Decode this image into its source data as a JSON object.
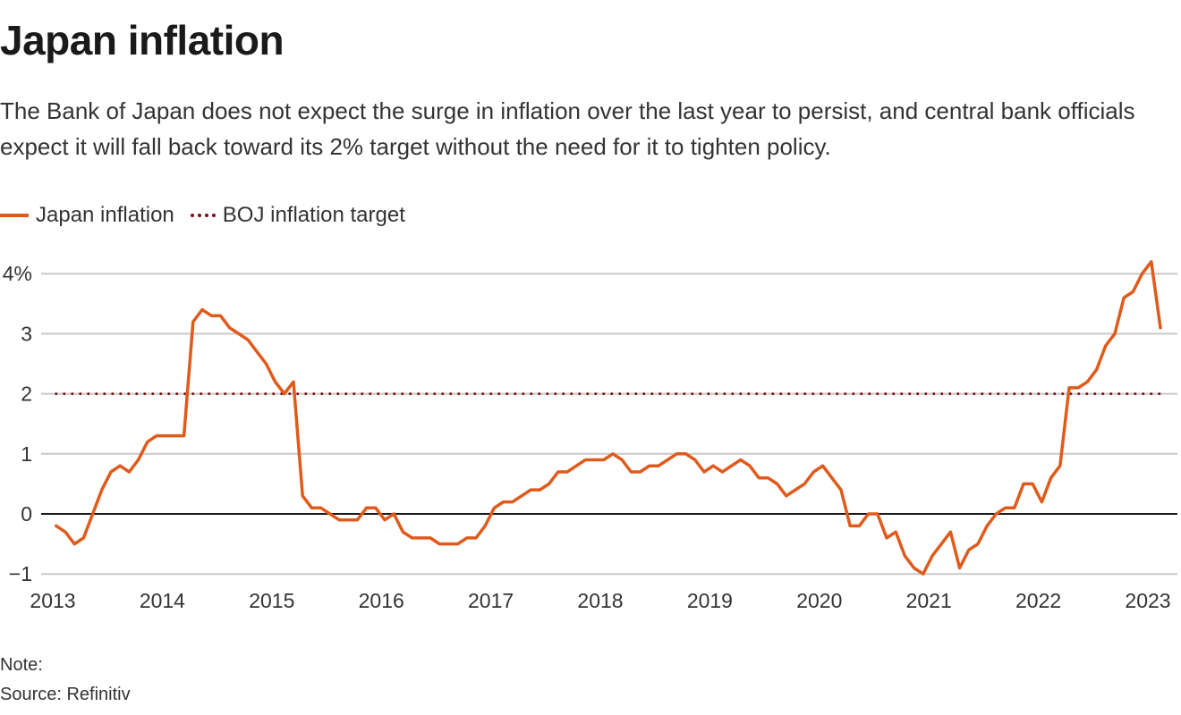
{
  "header": {
    "title": "Japan inflation",
    "subtitle": "The Bank of Japan does not expect the surge in inflation over the last year to persist, and central bank officials expect it will fall back toward its 2% target without the need for it to tighten policy."
  },
  "legend": [
    {
      "label": "Japan inflation",
      "style": "solid",
      "color": "#e05a1b"
    },
    {
      "label": "BOJ inflation target",
      "style": "dotted",
      "color": "#7a0d12"
    }
  ],
  "footer": {
    "note": "Note:",
    "source": "Source: Refinitiv"
  },
  "chart_data": {
    "type": "line",
    "title": "Japan inflation",
    "xlabel": "",
    "ylabel": "",
    "ylim": [
      -1,
      4
    ],
    "yticks": [
      -1,
      0,
      1,
      2,
      3,
      4
    ],
    "ytick_labels": [
      "−1",
      "0",
      "1",
      "2",
      "3",
      "4%"
    ],
    "xlim": [
      2013,
      2023.25
    ],
    "xticks": [
      2013,
      2014,
      2015,
      2016,
      2017,
      2018,
      2019,
      2020,
      2021,
      2022,
      2023
    ],
    "xtick_labels": [
      "2013",
      "2014",
      "2015",
      "2016",
      "2017",
      "2018",
      "2019",
      "2020",
      "2021",
      "2022",
      "2023"
    ],
    "grid": true,
    "legend_position": "top-left",
    "x_start": "2013-01",
    "frequency": "monthly",
    "series": [
      {
        "name": "Japan inflation",
        "color": "#e05a1b",
        "style": "solid",
        "values": [
          -0.2,
          -0.3,
          -0.5,
          -0.4,
          0.0,
          0.4,
          0.7,
          0.8,
          0.7,
          0.9,
          1.2,
          1.3,
          1.3,
          1.3,
          1.3,
          3.2,
          3.4,
          3.3,
          3.3,
          3.1,
          3.0,
          2.9,
          2.7,
          2.5,
          2.2,
          2.0,
          2.2,
          0.3,
          0.1,
          0.1,
          0.0,
          -0.1,
          -0.1,
          -0.1,
          0.1,
          0.1,
          -0.1,
          0.0,
          -0.3,
          -0.4,
          -0.4,
          -0.4,
          -0.5,
          -0.5,
          -0.5,
          -0.4,
          -0.4,
          -0.2,
          0.1,
          0.2,
          0.2,
          0.3,
          0.4,
          0.4,
          0.5,
          0.7,
          0.7,
          0.8,
          0.9,
          0.9,
          0.9,
          1.0,
          0.9,
          0.7,
          0.7,
          0.8,
          0.8,
          0.9,
          1.0,
          1.0,
          0.9,
          0.7,
          0.8,
          0.7,
          0.8,
          0.9,
          0.8,
          0.6,
          0.6,
          0.5,
          0.3,
          0.4,
          0.5,
          0.7,
          0.8,
          0.6,
          0.4,
          -0.2,
          -0.2,
          0.0,
          0.0,
          -0.4,
          -0.3,
          -0.7,
          -0.9,
          -1.0,
          -0.7,
          -0.5,
          -0.3,
          -0.9,
          -0.6,
          -0.5,
          -0.2,
          0.0,
          0.1,
          0.1,
          0.5,
          0.5,
          0.2,
          0.6,
          0.8,
          2.1,
          2.1,
          2.2,
          2.4,
          2.8,
          3.0,
          3.6,
          3.7,
          4.0,
          4.2,
          3.1
        ]
      },
      {
        "name": "BOJ inflation target",
        "color": "#7a0d12",
        "style": "dotted",
        "x_range": [
          "2013-01",
          "2023-02"
        ],
        "value": 2
      }
    ]
  }
}
